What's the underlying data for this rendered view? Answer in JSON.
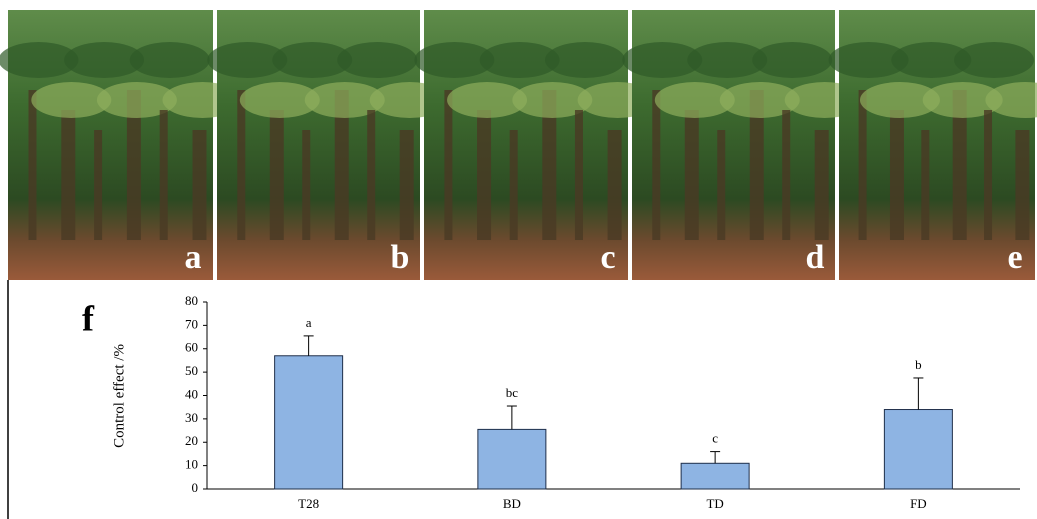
{
  "photo_panels": [
    "a",
    "b",
    "c",
    "d",
    "e"
  ],
  "panel_label": "f",
  "chart_data": {
    "type": "bar",
    "y_label": "Control effect /%",
    "categories": [
      "T28",
      "BD",
      "TD",
      "FD"
    ],
    "values": [
      57,
      25.5,
      11,
      34
    ],
    "errors": [
      8.5,
      10,
      5,
      13.5
    ],
    "annotations": [
      "a",
      "bc",
      "c",
      "b"
    ],
    "color": "#8eb4e3",
    "ylim": [
      0,
      80
    ],
    "yticks": [
      0,
      10,
      20,
      30,
      40,
      50,
      60,
      70,
      80
    ],
    "grid": false
  }
}
